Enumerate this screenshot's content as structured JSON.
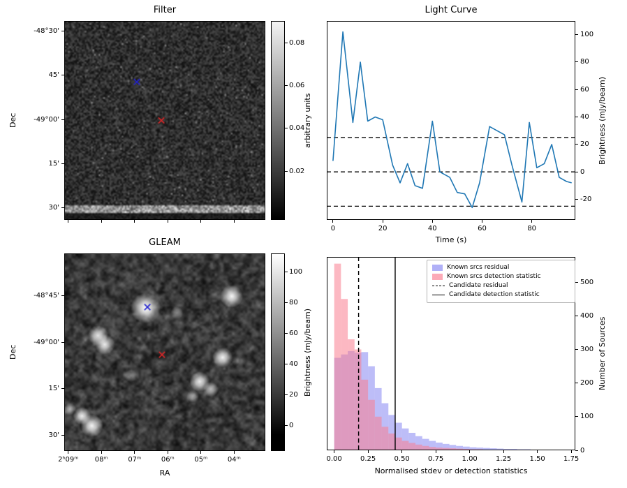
{
  "chart_data": [
    {
      "type": "heatmap",
      "title": "Filter",
      "ylabel": "Dec",
      "colorbar_label": "arbitrary units",
      "colorbar_ticks": [
        {
          "label": "0.08",
          "pos": 0.11
        },
        {
          "label": "0.06",
          "pos": 0.325
        },
        {
          "label": "0.04",
          "pos": 0.54
        },
        {
          "label": "0.02",
          "pos": 0.755
        }
      ],
      "yticks": [
        {
          "label": "-48°30'",
          "pos": 0.05
        },
        {
          "label": "45'",
          "pos": 0.2725
        },
        {
          "label": "-49°00'",
          "pos": 0.495
        },
        {
          "label": "15'",
          "pos": 0.7175
        },
        {
          "label": "30'",
          "pos": 0.94
        }
      ],
      "xtick_positions": [
        0.02,
        0.185,
        0.35,
        0.515,
        0.68,
        0.845
      ],
      "markers": [
        {
          "shape": "x",
          "color": "#2424cf",
          "x": 0.36,
          "y": 0.305
        },
        {
          "shape": "x",
          "color": "#d62728",
          "x": 0.483,
          "y": 0.5
        }
      ],
      "image_description": "fine-grained dark grayscale noise with a bright horizontal stripe near the bottom edge"
    },
    {
      "type": "line",
      "title": "Light Curve",
      "xlabel": "Time (s)",
      "ylabel": "Brightness (mJy/beam)",
      "line_color": "#1f77b4",
      "x": [
        0,
        4,
        8,
        11,
        14,
        17,
        20,
        24,
        27,
        30,
        33,
        36,
        40,
        43,
        47,
        50,
        53,
        56,
        59,
        63,
        66,
        69,
        72,
        76,
        79,
        82,
        85,
        88,
        91,
        94,
        96
      ],
      "y": [
        8,
        102,
        36,
        80,
        37,
        40,
        38,
        5,
        -8,
        6,
        -10,
        -12,
        37,
        0,
        -4,
        -15,
        -16,
        -26,
        -8,
        33,
        30,
        27,
        5,
        -22,
        36,
        3,
        6,
        20,
        -4,
        -7,
        -8
      ],
      "dashed_hlines": [
        25,
        0,
        -25
      ],
      "xlim": [
        -2.5,
        97.5
      ],
      "ylim": [
        -35,
        110
      ],
      "xticks": [
        0,
        20,
        40,
        60,
        80
      ],
      "yticks": [
        -20,
        0,
        20,
        40,
        60,
        80,
        100
      ],
      "yaxis_side": "right",
      "grid": false
    },
    {
      "type": "heatmap",
      "title": "GLEAM",
      "xlabel": "RA",
      "ylabel": "Dec",
      "colorbar_label": "Brightness (mJy/beam)",
      "colorbar_ticks": [
        {
          "label": "100",
          "pos": 0.095
        },
        {
          "label": "80",
          "pos": 0.25
        },
        {
          "label": "60",
          "pos": 0.405
        },
        {
          "label": "40",
          "pos": 0.56
        },
        {
          "label": "20",
          "pos": 0.715
        },
        {
          "label": "0",
          "pos": 0.87
        }
      ],
      "yticks": [
        {
          "label": "-48°45'",
          "pos": 0.215
        },
        {
          "label": "-49°00'",
          "pos": 0.45
        },
        {
          "label": "15'",
          "pos": 0.685
        },
        {
          "label": "30'",
          "pos": 0.92
        }
      ],
      "xticks": [
        {
          "label": "2ʰ09ᵐ",
          "pos": 0.02
        },
        {
          "label": "08ᵐ",
          "pos": 0.185
        },
        {
          "label": "07ᵐ",
          "pos": 0.35
        },
        {
          "label": "06ᵐ",
          "pos": 0.515
        },
        {
          "label": "05ᵐ",
          "pos": 0.68
        },
        {
          "label": "04ᵐ",
          "pos": 0.845
        }
      ],
      "markers": [
        {
          "shape": "x",
          "color": "#2424cf",
          "x": 0.413,
          "y": 0.27
        },
        {
          "shape": "x",
          "color": "#d62728",
          "x": 0.486,
          "y": 0.513
        }
      ],
      "sources": [
        {
          "x": 0.405,
          "y": 0.275,
          "r": 12,
          "i": 1.0
        },
        {
          "x": 0.835,
          "y": 0.215,
          "r": 9,
          "i": 0.95
        },
        {
          "x": 0.165,
          "y": 0.415,
          "r": 8,
          "i": 0.85
        },
        {
          "x": 0.2,
          "y": 0.46,
          "r": 8,
          "i": 0.9
        },
        {
          "x": 0.79,
          "y": 0.527,
          "r": 8,
          "i": 0.95
        },
        {
          "x": 0.675,
          "y": 0.65,
          "r": 8,
          "i": 0.9
        },
        {
          "x": 0.73,
          "y": 0.69,
          "r": 6,
          "i": 0.65
        },
        {
          "x": 0.64,
          "y": 0.725,
          "r": 5,
          "i": 0.55
        },
        {
          "x": 0.085,
          "y": 0.825,
          "r": 7,
          "i": 0.9
        },
        {
          "x": 0.135,
          "y": 0.875,
          "r": 9,
          "i": 0.95
        },
        {
          "x": 0.025,
          "y": 0.79,
          "r": 5,
          "i": 0.6
        },
        {
          "x": 0.56,
          "y": 0.3,
          "r": 5,
          "i": 0.45
        },
        {
          "x": 0.33,
          "y": 0.62,
          "r": 5,
          "i": 0.4
        }
      ],
      "image_description": "smoothed grayscale sky map with bright point sources"
    },
    {
      "type": "bar",
      "histogram": true,
      "xlabel": "Normalised stdev or detection statistics",
      "ylabel": "Number of Sources",
      "bin_start": 0,
      "bin_width": 0.05,
      "series": [
        {
          "name": "Known srcs residual",
          "color": "#7b7bf2",
          "alpha": 0.5,
          "values": [
            275,
            285,
            295,
            290,
            292,
            250,
            185,
            140,
            105,
            82,
            65,
            52,
            42,
            34,
            28,
            23,
            19,
            16,
            13,
            11,
            9,
            8,
            7,
            6,
            5,
            4,
            4,
            3,
            3,
            2,
            2,
            2,
            1,
            1,
            1
          ]
        },
        {
          "name": "Known srcs detection statistic",
          "color": "#fa7d90",
          "alpha": 0.55,
          "values": [
            555,
            450,
            330,
            300,
            210,
            150,
            100,
            70,
            50,
            38,
            28,
            22,
            17,
            13,
            10,
            8,
            7,
            6,
            5,
            4,
            3,
            3,
            2,
            2,
            2,
            1,
            1,
            1,
            1,
            1,
            0,
            1,
            0,
            0,
            1
          ]
        }
      ],
      "vlines": [
        {
          "name": "Candidate residual",
          "style": "dashed",
          "x": 0.18,
          "color": "#000000"
        },
        {
          "name": "Candidate detection statistic",
          "style": "solid",
          "x": 0.45,
          "color": "#000000"
        }
      ],
      "xlim": [
        -0.055,
        1.78
      ],
      "ylim": [
        0,
        575
      ],
      "xticks": [
        "0.00",
        "0.25",
        "0.50",
        "0.75",
        "1.00",
        "1.25",
        "1.50",
        "1.75"
      ],
      "yticks": [
        0,
        100,
        200,
        300,
        400,
        500
      ],
      "yaxis_side": "right",
      "legend_position": "upper right"
    }
  ]
}
